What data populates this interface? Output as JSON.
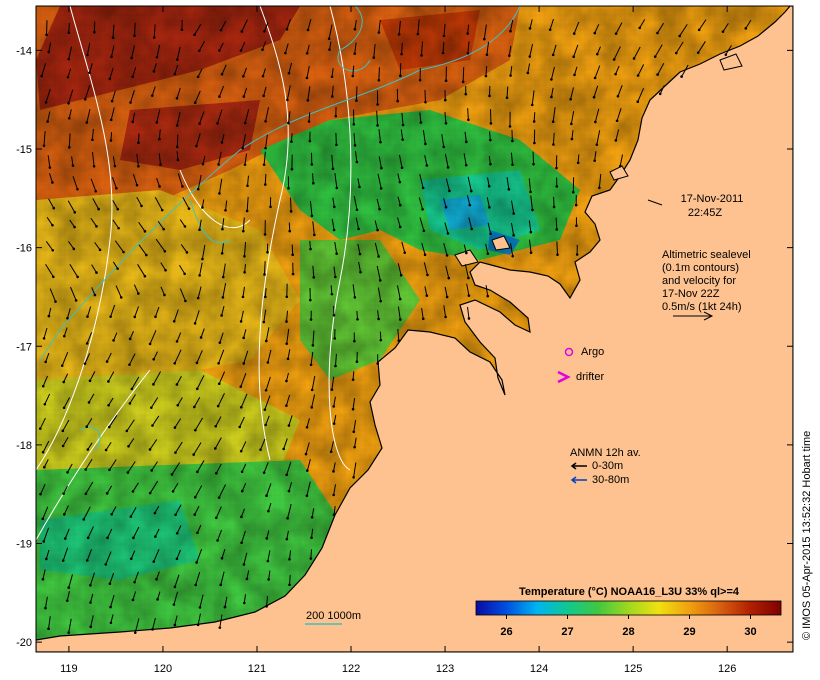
{
  "map": {
    "date_line": "17-Nov-2011",
    "time_line": "22:45Z",
    "x_ticks": [
      "119",
      "120",
      "121",
      "122",
      "123",
      "124",
      "125",
      "126"
    ],
    "y_ticks": [
      "-14",
      "-15",
      "-16",
      "-17",
      "-18",
      "-19",
      "-20"
    ],
    "lon_range": [
      118.65,
      126.7
    ],
    "lat_range": [
      -20.1,
      -13.55
    ]
  },
  "altimetry_note": {
    "line1": "Altimetric sealevel",
    "line2": "(0.1m contours)",
    "line3": "and velocity for",
    "line4": "17-Nov 22Z",
    "line5": "0.5m/s (1kt 24h)"
  },
  "legend": {
    "argo_label": "Argo",
    "drifter_label": "drifter",
    "anmn_title": "ANMN 12h av.",
    "anmn_shallow": "0-30m",
    "anmn_deep": "30-80m",
    "depth_labels": "200  1000m"
  },
  "colorbar": {
    "title": "Temperature (°C) NOAA16_L3U 33% ql>=4",
    "ticks": [
      "26",
      "27",
      "28",
      "29",
      "30"
    ],
    "range": [
      25.5,
      30.5
    ],
    "palette": [
      "#0a0aa0",
      "#0050e0",
      "#00b4f0",
      "#10c890",
      "#40c840",
      "#a0d820",
      "#f0e010",
      "#f0a010",
      "#d86010",
      "#b02000",
      "#800000"
    ]
  },
  "credit": "© IMOS 05-Apr-2015 13:52:32 Hobart time",
  "colors": {
    "land": "#fdc28f",
    "contour_sealevel": "#ffffff",
    "contour_200m": "#40c0c0",
    "argo": "#e000e0",
    "anmn_deep": "#0040c0"
  }
}
